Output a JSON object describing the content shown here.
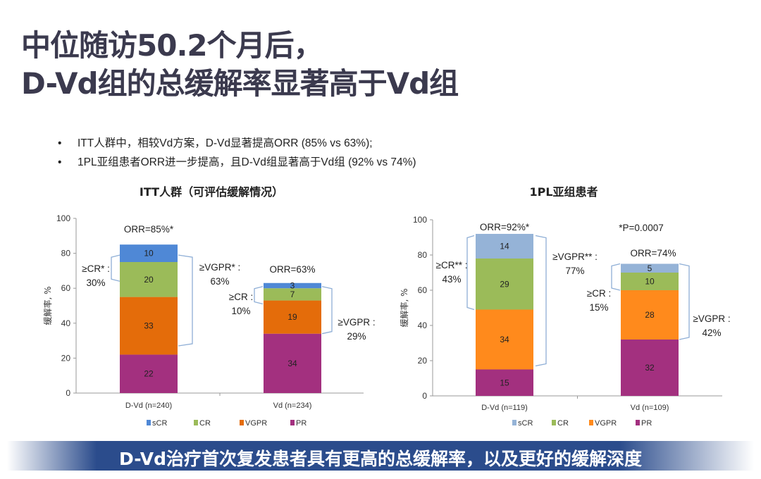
{
  "title": {
    "line1": "中位随访50.2个月后，",
    "line2": "D-Vd组的总缓解率显著高于Vd组"
  },
  "bullets": [
    "ITT人群中，相较Vd方案，D-Vd显著提高ORR (85% vs 63%);",
    "1PL亚组患者ORR进一步提高，且D-Vd组显著高于Vd组 (92% vs 74%)"
  ],
  "banner": "D-Vd治疗首次复发患者具有更高的总缓解率，以及更好的缓解深度",
  "chart_data": [
    {
      "type": "bar",
      "stacked": true,
      "title": "ITT人群（可评估缓解情况）",
      "ylabel": "缓解率, %",
      "ylim": [
        0,
        100
      ],
      "yticks": [
        0,
        20,
        40,
        60,
        80,
        100
      ],
      "grid": false,
      "legend": "bottom",
      "categories": [
        "D-Vd (n=240)",
        "Vd  (n=234)"
      ],
      "series": [
        {
          "name": "PR",
          "values": [
            22,
            34
          ],
          "color": "#a3307f"
        },
        {
          "name": "VGPR",
          "values": [
            33,
            19
          ],
          "color": "#e46c0a"
        },
        {
          "name": "CR",
          "values": [
            20,
            7
          ],
          "color": "#9bbb59"
        },
        {
          "name": "sCR",
          "values": [
            10,
            3
          ],
          "color": "#4f88d6"
        }
      ],
      "annotations": {
        "orr": [
          "ORR=85%*",
          "ORR=63%"
        ],
        "cr": [
          [
            "≥CR* :",
            "30%"
          ],
          [
            "≥CR :",
            "10%"
          ]
        ],
        "vgpr": [
          [
            "≥VGPR* :",
            "63%"
          ],
          [
            "≥VGPR :",
            "29%"
          ]
        ]
      }
    },
    {
      "type": "bar",
      "stacked": true,
      "title": "1PL亚组患者",
      "ylabel": "缓解率, %",
      "ylim": [
        0,
        100
      ],
      "yticks": [
        0,
        20,
        40,
        60,
        80,
        100
      ],
      "grid": false,
      "legend": "bottom",
      "categories": [
        "D-Vd (n=119)",
        "Vd (n=109)"
      ],
      "series": [
        {
          "name": "PR",
          "values": [
            15,
            32
          ],
          "color": "#a3307f"
        },
        {
          "name": "VGPR",
          "values": [
            34,
            28
          ],
          "color": "#ff8a1c"
        },
        {
          "name": "CR",
          "values": [
            29,
            10
          ],
          "color": "#9bbb59"
        },
        {
          "name": "sCR",
          "values": [
            14,
            5
          ],
          "color": "#95b3d7"
        }
      ],
      "annotations": {
        "orr": [
          "ORR=92%*",
          "ORR=74%"
        ],
        "cr": [
          [
            "≥CR** :",
            "43%"
          ],
          [
            "≥CR :",
            "15%"
          ]
        ],
        "vgpr": [
          [
            "≥VGPR** :",
            "77%"
          ],
          [
            "≥VGPR :",
            "42%"
          ]
        ],
        "pvalue": "*P=0.0007"
      }
    }
  ]
}
